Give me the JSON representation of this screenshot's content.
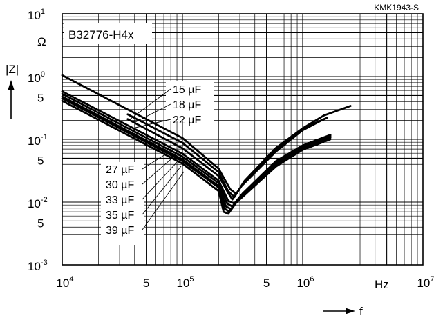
{
  "chart_data": {
    "type": "line",
    "code": "KMK1943-S",
    "part_number": "B32776-H4x",
    "xlabel": "f",
    "ylabel": "|Z|",
    "x_unit": "Hz",
    "y_unit": "Ω",
    "x_scale": "log",
    "y_scale": "log",
    "xlim": [
      10000,
      10000000
    ],
    "ylim": [
      0.001,
      10
    ],
    "grid": true,
    "x_ticks": [
      {
        "value": 10000,
        "base": "10",
        "exp": "4"
      },
      {
        "value": 50000,
        "base": "5",
        "exp": ""
      },
      {
        "value": 100000,
        "base": "10",
        "exp": "5"
      },
      {
        "value": 500000,
        "base": "5",
        "exp": ""
      },
      {
        "value": 1000000,
        "base": "10",
        "exp": "6"
      },
      {
        "value": 10000000,
        "base": "10",
        "exp": "7"
      }
    ],
    "y_ticks": [
      {
        "value": 10,
        "base": "10",
        "exp": "1"
      },
      {
        "value": 1,
        "base": "10",
        "exp": "0"
      },
      {
        "value": 0.5,
        "base": "5",
        "exp": ""
      },
      {
        "value": 0.1,
        "base": "10",
        "exp": "-1"
      },
      {
        "value": 0.05,
        "base": "5",
        "exp": ""
      },
      {
        "value": 0.01,
        "base": "10",
        "exp": "-2"
      },
      {
        "value": 0.005,
        "base": "5",
        "exp": ""
      },
      {
        "value": 0.001,
        "base": "10",
        "exp": "-3"
      }
    ],
    "series": [
      {
        "name": "15 µF",
        "points": [
          [
            10000,
            1.05
          ],
          [
            100000,
            0.105
          ],
          [
            200000,
            0.034
          ],
          [
            250000,
            0.016
          ],
          [
            280000,
            0.0135
          ],
          [
            330000,
            0.022
          ],
          [
            600000,
            0.073
          ],
          [
            1000000,
            0.15
          ],
          [
            1500000,
            0.24
          ],
          [
            2500000,
            0.34
          ]
        ]
      },
      {
        "name": "18 µF",
        "points": [
          [
            35000,
            0.25
          ],
          [
            100000,
            0.088
          ],
          [
            200000,
            0.03
          ],
          [
            240000,
            0.015
          ],
          [
            270000,
            0.012
          ],
          [
            320000,
            0.02
          ],
          [
            600000,
            0.068
          ],
          [
            1000000,
            0.15
          ],
          [
            1600000,
            0.22
          ]
        ]
      },
      {
        "name": "22 µF",
        "points": [
          [
            35000,
            0.21
          ],
          [
            100000,
            0.072
          ],
          [
            200000,
            0.026
          ],
          [
            240000,
            0.014
          ],
          [
            260000,
            0.011
          ],
          [
            310000,
            0.018
          ],
          [
            600000,
            0.064
          ],
          [
            1000000,
            0.14
          ],
          [
            1500000,
            0.21
          ]
        ]
      },
      {
        "name": "27 µF",
        "points": [
          [
            10000,
            0.58
          ],
          [
            100000,
            0.059
          ],
          [
            200000,
            0.022
          ],
          [
            240000,
            0.0105
          ],
          [
            270000,
            0.0095
          ],
          [
            320000,
            0.014
          ],
          [
            600000,
            0.045
          ],
          [
            1000000,
            0.08
          ],
          [
            1700000,
            0.118
          ]
        ]
      },
      {
        "name": "30 µF",
        "points": [
          [
            10000,
            0.53
          ],
          [
            100000,
            0.053
          ],
          [
            200000,
            0.02
          ],
          [
            235000,
            0.0095
          ],
          [
            260000,
            0.0085
          ],
          [
            310000,
            0.013
          ],
          [
            600000,
            0.043
          ],
          [
            1000000,
            0.077
          ],
          [
            1700000,
            0.114
          ]
        ]
      },
      {
        "name": "33 µF",
        "points": [
          [
            10000,
            0.48
          ],
          [
            100000,
            0.048
          ],
          [
            200000,
            0.018
          ],
          [
            230000,
            0.0085
          ],
          [
            255000,
            0.0077
          ],
          [
            300000,
            0.012
          ],
          [
            600000,
            0.041
          ],
          [
            1000000,
            0.074
          ],
          [
            1700000,
            0.11
          ]
        ]
      },
      {
        "name": "35 µF",
        "points": [
          [
            10000,
            0.45
          ],
          [
            100000,
            0.045
          ],
          [
            200000,
            0.017
          ],
          [
            225000,
            0.0078
          ],
          [
            245000,
            0.0071
          ],
          [
            290000,
            0.011
          ],
          [
            600000,
            0.039
          ],
          [
            1000000,
            0.071
          ],
          [
            1700000,
            0.106
          ]
        ]
      },
      {
        "name": "39 µF",
        "points": [
          [
            10000,
            0.41
          ],
          [
            100000,
            0.041
          ],
          [
            200000,
            0.015
          ],
          [
            220000,
            0.007
          ],
          [
            240000,
            0.0065
          ],
          [
            280000,
            0.0098
          ],
          [
            600000,
            0.037
          ],
          [
            1000000,
            0.068
          ],
          [
            1700000,
            0.1
          ]
        ]
      }
    ]
  }
}
